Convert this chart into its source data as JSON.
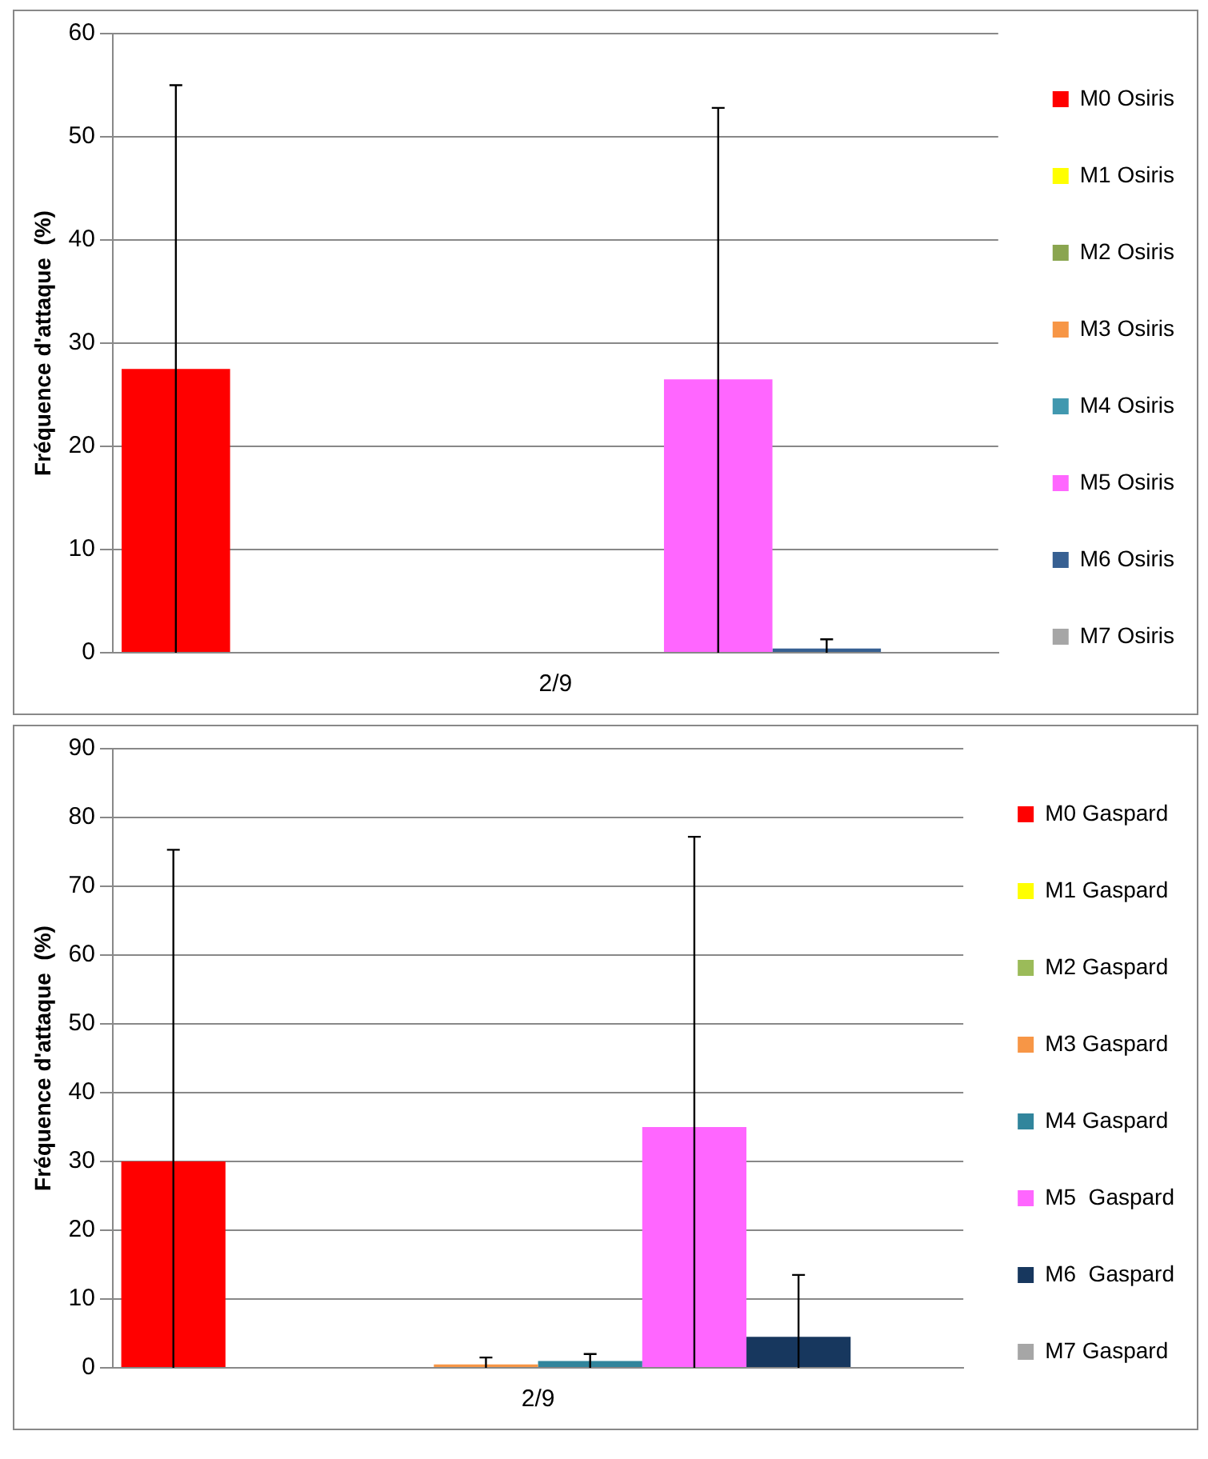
{
  "chart_data": [
    {
      "type": "bar",
      "ylabel": "Fréquence d'attaque  (%)",
      "categories": [
        "2/9"
      ],
      "ylim": [
        0,
        60
      ],
      "yticks": [
        0,
        10,
        20,
        30,
        40,
        50,
        60
      ],
      "grid": "y",
      "legend": "right",
      "series": [
        {
          "name": "M0 Osiris",
          "color": "#ff0000",
          "values": [
            27.5
          ],
          "errors": [
            [
              0,
              55
            ]
          ]
        },
        {
          "name": "M1 Osiris",
          "color": "#ffff00",
          "values": [
            0
          ]
        },
        {
          "name": "M2 Osiris",
          "color": "#8aa54f",
          "values": [
            0
          ]
        },
        {
          "name": "M3 Osiris",
          "color": "#f79646",
          "values": [
            0
          ]
        },
        {
          "name": "M4 Osiris",
          "color": "#4198af",
          "values": [
            0
          ]
        },
        {
          "name": "M5 Osiris",
          "color": "#ff66ff",
          "values": [
            26.5
          ],
          "errors": [
            [
              0,
              52.8
            ]
          ]
        },
        {
          "name": "M6 Osiris",
          "color": "#376092",
          "values": [
            0.4
          ],
          "errors": [
            [
              0,
              1.3
            ]
          ]
        },
        {
          "name": "M7 Osiris",
          "color": "#a6a6a6",
          "values": [
            0
          ]
        }
      ]
    },
    {
      "type": "bar",
      "ylabel": "Fréquence d'attaque  (%)",
      "categories": [
        "2/9"
      ],
      "ylim": [
        0,
        90
      ],
      "yticks": [
        0,
        10,
        20,
        30,
        40,
        50,
        60,
        70,
        80,
        90
      ],
      "grid": "y",
      "legend": "right",
      "series": [
        {
          "name": "M0 Gaspard",
          "color": "#ff0000",
          "values": [
            30
          ],
          "errors": [
            [
              0,
              75.3
            ]
          ]
        },
        {
          "name": "M1 Gaspard",
          "color": "#ffff00",
          "values": [
            0
          ]
        },
        {
          "name": "M2 Gaspard",
          "color": "#9bbb59",
          "values": [
            0
          ]
        },
        {
          "name": "M3 Gaspard",
          "color": "#f79646",
          "values": [
            0.5
          ],
          "errors": [
            [
              0,
              1.5
            ]
          ]
        },
        {
          "name": "M4 Gaspard",
          "color": "#31859c",
          "values": [
            1
          ],
          "errors": [
            [
              0,
              2
            ]
          ]
        },
        {
          "name": "M5  Gaspard",
          "color": "#ff66ff",
          "values": [
            35
          ],
          "errors": [
            [
              0,
              77.2
            ]
          ]
        },
        {
          "name": "M6  Gaspard",
          "color": "#17375e",
          "values": [
            4.5
          ],
          "errors": [
            [
              0,
              13.5
            ]
          ]
        },
        {
          "name": "M7 Gaspard",
          "color": "#a6a6a6",
          "values": [
            0
          ]
        }
      ]
    }
  ]
}
